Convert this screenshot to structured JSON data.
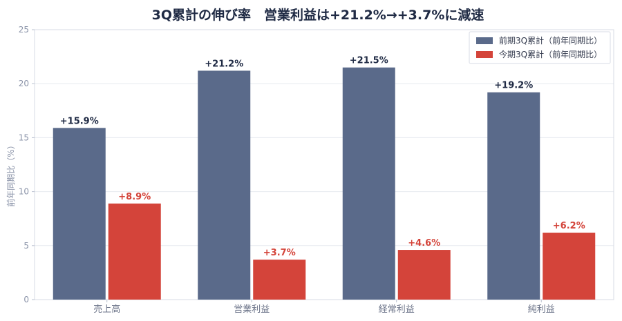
{
  "chart_data": {
    "type": "bar",
    "title": "3Q累計の伸び率　営業利益は+21.2%→+3.7%に減速",
    "ylabel": "前年同期比（%）",
    "xlabel": "",
    "categories": [
      "売上高",
      "営業利益",
      "経常利益",
      "純利益"
    ],
    "ylim": [
      0,
      25
    ],
    "yticks": [
      0,
      5,
      10,
      15,
      20,
      25
    ],
    "grid": true,
    "legend_position": "top-right",
    "series": [
      {
        "name": "前期3Q累計（前年同期比）",
        "color": "#5a6a8a",
        "label_color": "#1f2a44",
        "values": [
          15.9,
          21.2,
          21.5,
          19.2
        ],
        "labels": [
          "+15.9%",
          "+21.2%",
          "+21.5%",
          "+19.2%"
        ]
      },
      {
        "name": "今期3Q累計（前年同期比）",
        "color": "#d4443a",
        "label_color": "#d4443a",
        "values": [
          8.9,
          3.7,
          4.6,
          6.2
        ],
        "labels": [
          "+8.9%",
          "+3.7%",
          "+4.6%",
          "+6.2%"
        ]
      }
    ]
  }
}
